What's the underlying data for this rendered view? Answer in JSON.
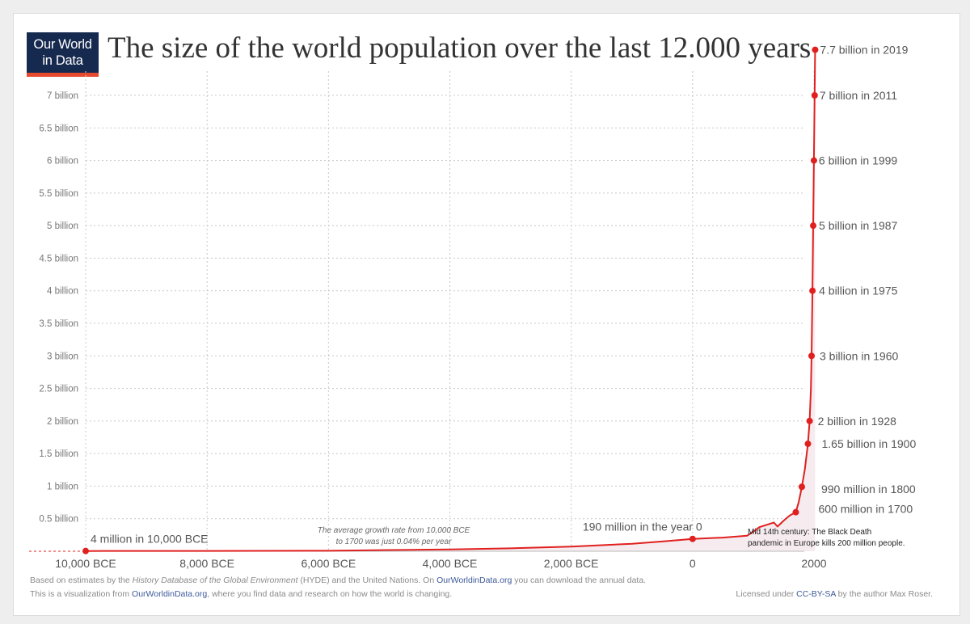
{
  "logo": {
    "line1": "Our World",
    "line2": "in Data"
  },
  "colors": {
    "line": "#e0201f",
    "area": "#f6ecef",
    "grid": "#c8c8c8",
    "label": "#555555",
    "logo_bg": "#16294f",
    "logo_accent": "#e64a2e"
  },
  "footer": {
    "line1_pre": "Based on estimates by the ",
    "line1_italic": "History Database of the Global Environment",
    "line1_mid": " (HYDE) and the United Nations. On ",
    "line1_link": "OurWorldinData.org",
    "line1_post": " you can download the annual data.",
    "line2_pre": "This is a visualization from ",
    "line2_link": "OurWorldinData.org",
    "line2_post": ", where you find data and research on how the world is changing.",
    "license_pre": "Licensed under ",
    "license_link": "CC-BY-SA",
    "license_post": " by the author Max Roser."
  },
  "chart_data": {
    "type": "area",
    "title": "The size of the world population over the last 12.000 years",
    "xlabel": "",
    "ylabel": "",
    "xlim": [
      -12000,
      2030
    ],
    "ylim": [
      0,
      7.7
    ],
    "y_unit": "billion",
    "grid": true,
    "y_ticks": [
      {
        "value": 0.5,
        "label": "0.5 billion"
      },
      {
        "value": 1,
        "label": "1 billion"
      },
      {
        "value": 1.5,
        "label": "1.5 billion"
      },
      {
        "value": 2,
        "label": "2 billion"
      },
      {
        "value": 2.5,
        "label": "2.5 billion"
      },
      {
        "value": 3,
        "label": "3 billion"
      },
      {
        "value": 3.5,
        "label": "3.5  billion"
      },
      {
        "value": 4,
        "label": "4 billion"
      },
      {
        "value": 4.5,
        "label": "4.5 billion"
      },
      {
        "value": 5,
        "label": "5 billion"
      },
      {
        "value": 5.5,
        "label": "5.5 billion"
      },
      {
        "value": 6,
        "label": "6 billion"
      },
      {
        "value": 6.5,
        "label": "6.5 billion"
      },
      {
        "value": 7,
        "label": "7 billion"
      }
    ],
    "x_ticks": [
      {
        "value": -10000,
        "label": "10,000 BCE"
      },
      {
        "value": -8000,
        "label": "8,000 BCE"
      },
      {
        "value": -6000,
        "label": "6,000 BCE"
      },
      {
        "value": -4000,
        "label": "4,000 BCE"
      },
      {
        "value": -2000,
        "label": "2,000 BCE"
      },
      {
        "value": 0,
        "label": "0"
      },
      {
        "value": 2000,
        "label": "2000"
      }
    ],
    "series": [
      {
        "values": [
          {
            "x": -10000,
            "y": 0.004
          },
          {
            "x": -8000,
            "y": 0.005
          },
          {
            "x": -6000,
            "y": 0.007
          },
          {
            "x": -5000,
            "y": 0.018
          },
          {
            "x": -4000,
            "y": 0.028
          },
          {
            "x": -3000,
            "y": 0.045
          },
          {
            "x": -2000,
            "y": 0.072
          },
          {
            "x": -1000,
            "y": 0.115
          },
          {
            "x": -500,
            "y": 0.15
          },
          {
            "x": 0,
            "y": 0.19
          },
          {
            "x": 500,
            "y": 0.21
          },
          {
            "x": 900,
            "y": 0.24
          },
          {
            "x": 1000,
            "y": 0.3
          },
          {
            "x": 1100,
            "y": 0.37
          },
          {
            "x": 1200,
            "y": 0.4
          },
          {
            "x": 1340,
            "y": 0.44
          },
          {
            "x": 1400,
            "y": 0.38
          },
          {
            "x": 1500,
            "y": 0.47
          },
          {
            "x": 1600,
            "y": 0.55
          },
          {
            "x": 1700,
            "y": 0.6
          },
          {
            "x": 1750,
            "y": 0.76
          },
          {
            "x": 1800,
            "y": 0.99
          },
          {
            "x": 1850,
            "y": 1.26
          },
          {
            "x": 1900,
            "y": 1.65
          },
          {
            "x": 1928,
            "y": 2.0
          },
          {
            "x": 1950,
            "y": 2.5
          },
          {
            "x": 1960,
            "y": 3.0
          },
          {
            "x": 1975,
            "y": 4.0
          },
          {
            "x": 1987,
            "y": 5.0
          },
          {
            "x": 1999,
            "y": 6.0
          },
          {
            "x": 2011,
            "y": 7.0
          },
          {
            "x": 2019,
            "y": 7.7
          }
        ]
      }
    ],
    "markers": [
      {
        "x": -10000,
        "y": 0.004,
        "label": "4 million in 10,000 BCE"
      },
      {
        "x": 0,
        "y": 0.19,
        "label": "190 million in the year 0"
      },
      {
        "x": 1700,
        "y": 0.6,
        "label": "600 million in 1700"
      },
      {
        "x": 1800,
        "y": 0.99,
        "label": "990 million in 1800"
      },
      {
        "x": 1900,
        "y": 1.65,
        "label": "1.65 billion in 1900"
      },
      {
        "x": 1928,
        "y": 2.0,
        "label": "2 billion in 1928"
      },
      {
        "x": 1960,
        "y": 3.0,
        "label": "3 billion in 1960"
      },
      {
        "x": 1975,
        "y": 4.0,
        "label": "4 billion in 1975"
      },
      {
        "x": 1987,
        "y": 5.0,
        "label": "5 billion in 1987"
      },
      {
        "x": 1999,
        "y": 6.0,
        "label": "6 billion in 1999"
      },
      {
        "x": 2011,
        "y": 7.0,
        "label": "7 billion in 2011"
      },
      {
        "x": 2019,
        "y": 7.7,
        "label": "7.7 billion in 2019"
      }
    ],
    "annotations": [
      {
        "line1": "The average growth rate from 10,000 BCE",
        "line2": "to 1700 was just  0.04% per year"
      },
      {
        "line1": "Mid 14th century: The Black Death",
        "line2": "pandemic in Europe kills 200 million people."
      }
    ]
  }
}
